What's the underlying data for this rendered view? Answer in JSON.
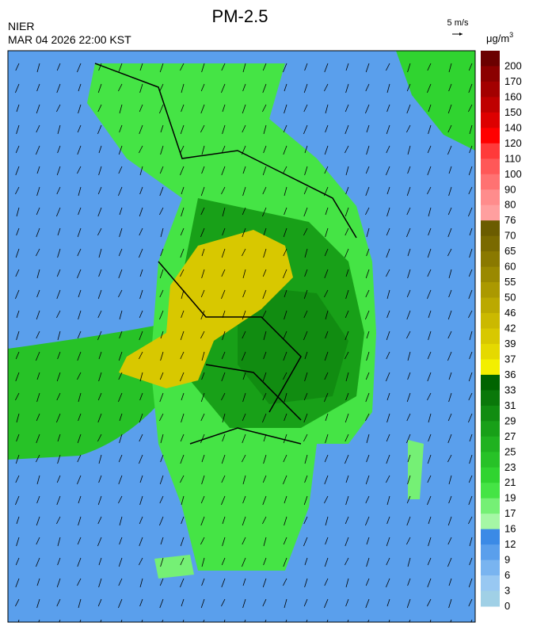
{
  "header": {
    "title": "PM-2.5",
    "agency": "NIER",
    "datetime": "MAR 04 2026 22:00 KST"
  },
  "wind_reference": {
    "label": "5 m/s"
  },
  "colorbar": {
    "unit": "μg/m",
    "unit_superscript": "3",
    "levels": [
      {
        "label": 200,
        "color": "#6b0000"
      },
      {
        "label": 170,
        "color": "#8b0000"
      },
      {
        "label": 160,
        "color": "#a30000"
      },
      {
        "label": 150,
        "color": "#bf0000"
      },
      {
        "label": 140,
        "color": "#dd0000"
      },
      {
        "label": 120,
        "color": "#ff0000"
      },
      {
        "label": 110,
        "color": "#ff3a3a"
      },
      {
        "label": 100,
        "color": "#ff5858"
      },
      {
        "label": 90,
        "color": "#ff7272"
      },
      {
        "label": 80,
        "color": "#ff8c8c"
      },
      {
        "label": 76,
        "color": "#ff9f9f"
      },
      {
        "label": 70,
        "color": "#6b5c00"
      },
      {
        "label": 65,
        "color": "#7a6a00"
      },
      {
        "label": 60,
        "color": "#8a7900"
      },
      {
        "label": 55,
        "color": "#9a8900"
      },
      {
        "label": 50,
        "color": "#ab9900"
      },
      {
        "label": 46,
        "color": "#bba900"
      },
      {
        "label": 42,
        "color": "#cbb900"
      },
      {
        "label": 39,
        "color": "#d8c800"
      },
      {
        "label": 37,
        "color": "#e5d900"
      },
      {
        "label": 36,
        "color": "#f3ef00"
      },
      {
        "label": 33,
        "color": "#006400"
      },
      {
        "label": 31,
        "color": "#0a780a"
      },
      {
        "label": 29,
        "color": "#118c11"
      },
      {
        "label": 27,
        "color": "#18a018"
      },
      {
        "label": 25,
        "color": "#20b220"
      },
      {
        "label": 23,
        "color": "#27c227"
      },
      {
        "label": 21,
        "color": "#30d430"
      },
      {
        "label": 19,
        "color": "#45e445"
      },
      {
        "label": 17,
        "color": "#75f075"
      },
      {
        "label": 16,
        "color": "#a5f7a5"
      },
      {
        "label": 12,
        "color": "#3b8ae6"
      },
      {
        "label": 9,
        "color": "#5a9fec"
      },
      {
        "label": 6,
        "color": "#79b4f0"
      },
      {
        "label": 3,
        "color": "#98c8f2"
      },
      {
        "label": 0,
        "color": "#a0d0e6"
      }
    ]
  }
}
